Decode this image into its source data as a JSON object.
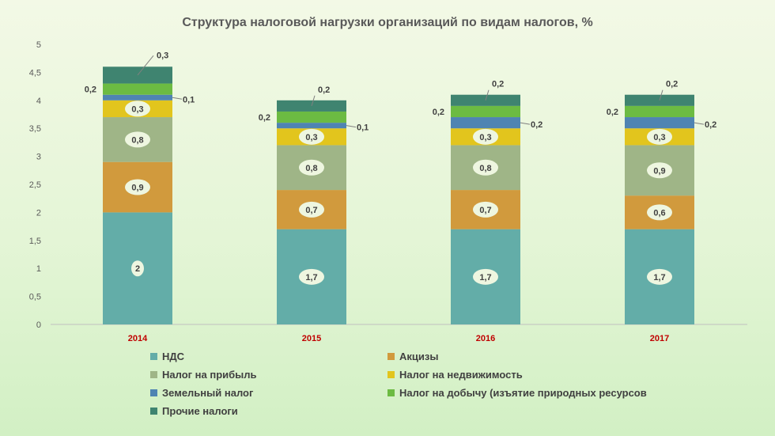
{
  "chart_data": {
    "type": "bar",
    "stacked": true,
    "title": "Структура налоговой нагрузки организаций по видам налогов, %",
    "categories": [
      "2014",
      "2015",
      "2016",
      "2017"
    ],
    "ylim": [
      0,
      5
    ],
    "yticks": [
      "0",
      "0,5",
      "1",
      "1,5",
      "2",
      "2,5",
      "3",
      "3,5",
      "4",
      "4,5",
      "5"
    ],
    "legend_position": "bottom",
    "grid": false,
    "series": [
      {
        "name": "НДС",
        "color": "#63ada8",
        "values": [
          2,
          1.7,
          1.7,
          1.7
        ],
        "labels": [
          "2",
          "1,7",
          "1,7",
          "1,7"
        ]
      },
      {
        "name": "Акцизы",
        "color": "#d19a3d",
        "values": [
          0.9,
          0.7,
          0.7,
          0.6
        ],
        "labels": [
          "0,9",
          "0,7",
          "0,7",
          "0,6"
        ]
      },
      {
        "name": "Налог на прибыль",
        "color": "#9fb587",
        "values": [
          0.8,
          0.8,
          0.8,
          0.9
        ],
        "labels": [
          "0,8",
          "0,8",
          "0,8",
          "0,9"
        ]
      },
      {
        "name": "Налог на недвижимость",
        "color": "#e2c51d",
        "values": [
          0.3,
          0.3,
          0.3,
          0.3
        ],
        "labels": [
          "0,3",
          "0,3",
          "0,3",
          "0,3"
        ]
      },
      {
        "name": "Земельный налог",
        "color": "#4f84b2",
        "values": [
          0.1,
          0.1,
          0.2,
          0.2
        ],
        "labels": [
          "0,1",
          "0,1",
          "0,2",
          "0,2"
        ]
      },
      {
        "name": "Налог на добычу (изъятие природных ресурсов",
        "color": "#6cbb42",
        "values": [
          0.2,
          0.2,
          0.2,
          0.2
        ],
        "labels": [
          "0,2",
          "0,2",
          "0,2",
          "0,2"
        ]
      },
      {
        "name": "Прочие налоги",
        "color": "#3f8470",
        "values": [
          0.3,
          0.2,
          0.2,
          0.2
        ],
        "labels": [
          "0,3",
          "0,2",
          "0,2",
          "0,2"
        ]
      }
    ]
  }
}
